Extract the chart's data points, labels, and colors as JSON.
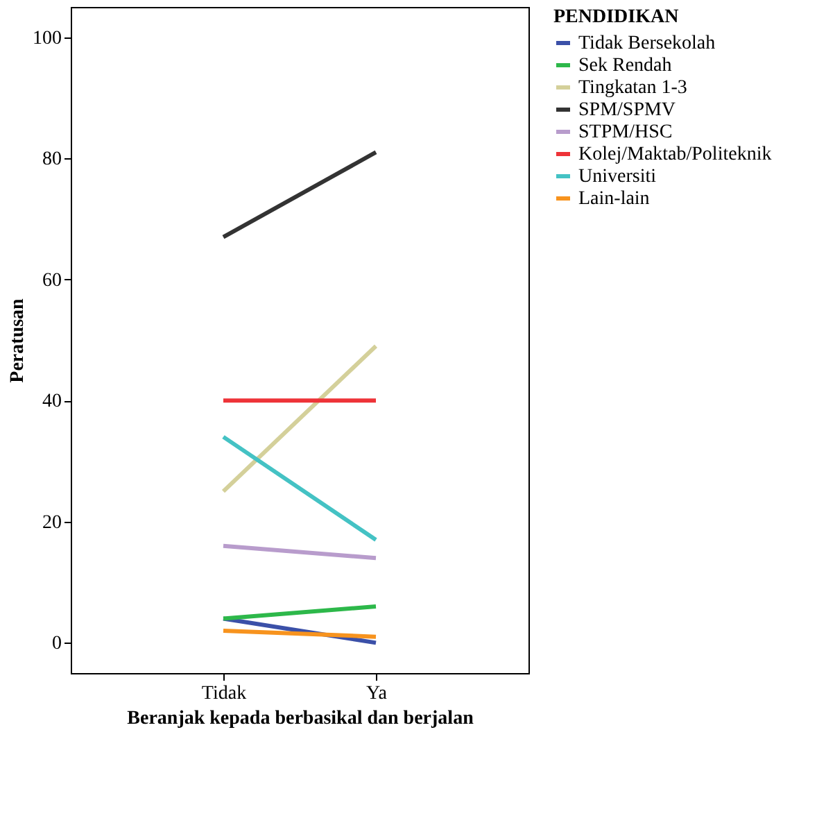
{
  "chart_data": {
    "type": "line",
    "xlabel": "Beranjak kepada berbasikal dan berjalan",
    "ylabel": "Peratusan",
    "legend_title": "PENDIDIKAN",
    "categories": [
      "Tidak",
      "Ya"
    ],
    "series": [
      {
        "name": "Tidak Bersekolah",
        "color": "#3b50a8",
        "values": [
          4,
          0
        ]
      },
      {
        "name": "Sek Rendah",
        "color": "#2db84a",
        "values": [
          4,
          6
        ]
      },
      {
        "name": "Tingkatan 1-3",
        "color": "#d4d09a",
        "values": [
          25,
          49
        ]
      },
      {
        "name": "SPM/SPMV",
        "color": "#333333",
        "values": [
          67,
          81
        ]
      },
      {
        "name": "STPM/HSC",
        "color": "#b89ccc",
        "values": [
          16,
          14
        ]
      },
      {
        "name": "Kolej/Maktab/Politeknik",
        "color": "#ee3338",
        "values": [
          40,
          40
        ]
      },
      {
        "name": "Universiti",
        "color": "#44c2c4",
        "values": [
          34,
          17
        ]
      },
      {
        "name": "Lain-lain",
        "color": "#f7931e",
        "values": [
          2,
          1
        ]
      }
    ],
    "ylim": [
      -5,
      105
    ],
    "yticks": [
      0,
      20,
      40,
      60,
      80,
      100
    ],
    "grid": false,
    "legend": "right",
    "marker": "none",
    "line_style": "solid"
  }
}
